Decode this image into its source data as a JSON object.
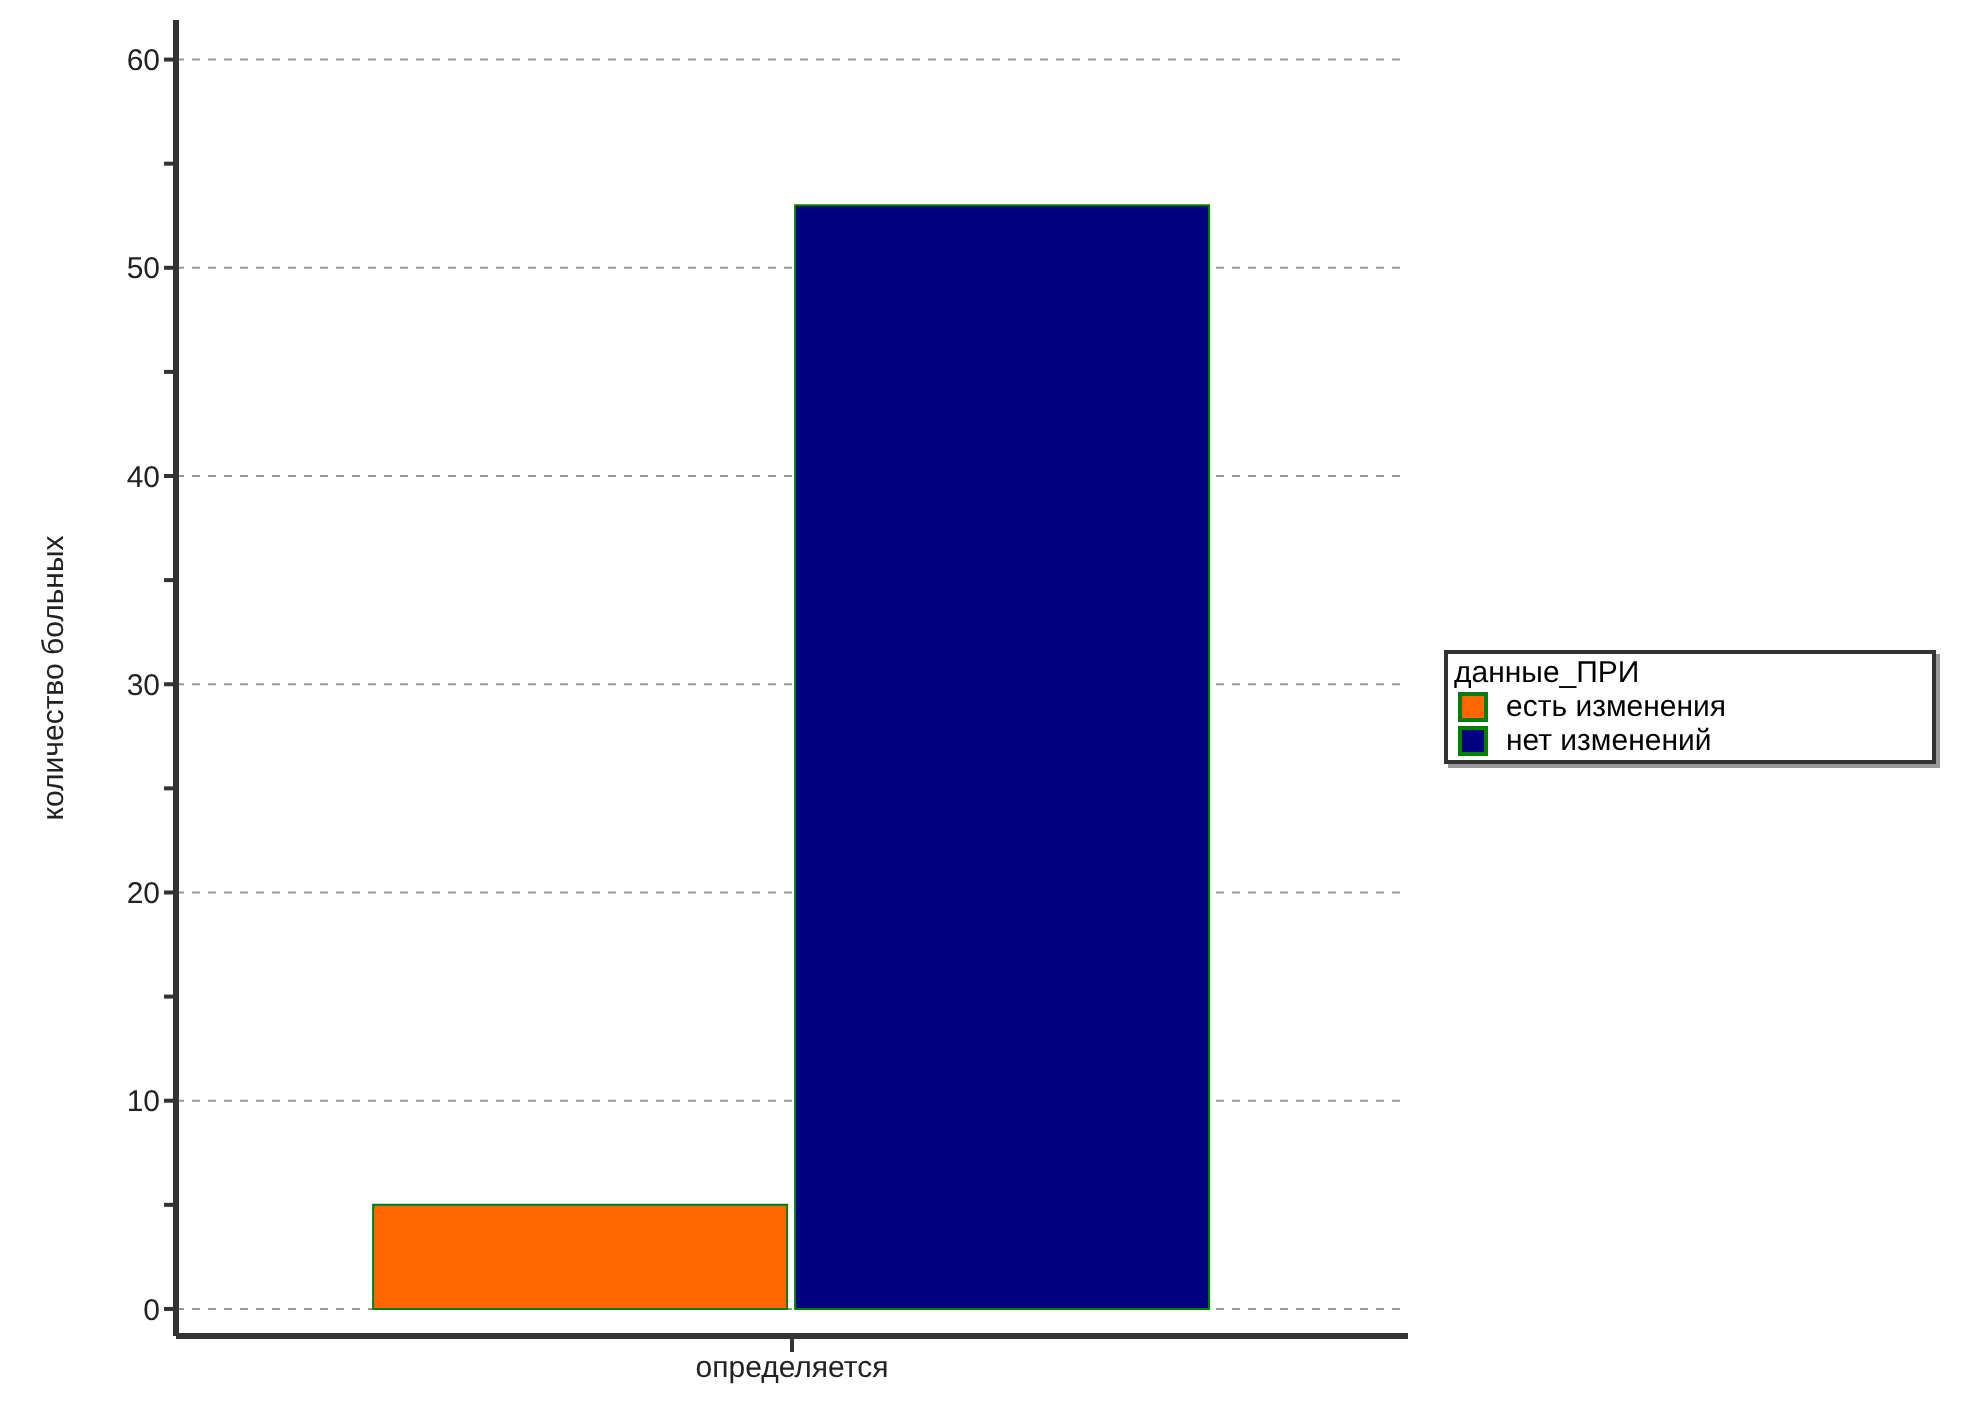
{
  "chart_data": {
    "type": "bar",
    "ylabel": "количество больных",
    "legend_title": "данные_ПРИ",
    "categories": [
      "определяется"
    ],
    "series": [
      {
        "name": "есть изменения",
        "color": "#ff6600",
        "values": [
          5
        ]
      },
      {
        "name": "нет изменений",
        "color": "#000080",
        "values": [
          53
        ]
      }
    ],
    "ylim": [
      -1.3,
      61.9
    ],
    "yticks": [
      0,
      {
        "value": 5,
        "label": null
      },
      10,
      {
        "value": 15,
        "label": null
      },
      20,
      {
        "value": 25,
        "label": null
      },
      30,
      {
        "value": 35,
        "label": null
      },
      40,
      {
        "value": 45,
        "label": null
      },
      50,
      {
        "value": 55,
        "label": null
      },
      60
    ],
    "grid": "y",
    "legend": "right"
  }
}
